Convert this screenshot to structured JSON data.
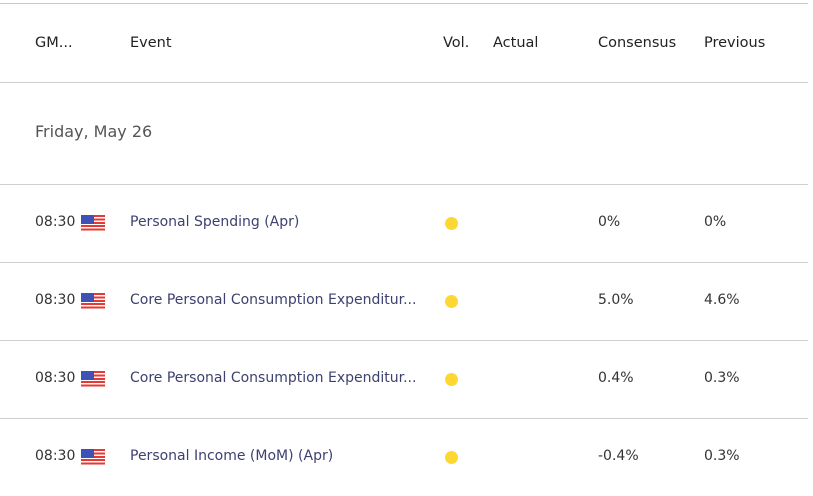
{
  "header": {
    "time": "GM...",
    "event": "Event",
    "vol": "Vol.",
    "actual": "Actual",
    "consensus": "Consensus",
    "previous": "Previous"
  },
  "date_label": "Friday, May 26",
  "volatility_color": "#fdd835",
  "rows": [
    {
      "time": "08:30",
      "country": "US",
      "event": "Personal Spending (Apr)",
      "actual": "",
      "consensus": "0%",
      "previous": "0%"
    },
    {
      "time": "08:30",
      "country": "US",
      "event": "Core Personal Consumption Expenditur...",
      "actual": "",
      "consensus": "5.0%",
      "previous": "4.6%"
    },
    {
      "time": "08:30",
      "country": "US",
      "event": "Core Personal Consumption Expenditur...",
      "actual": "",
      "consensus": "0.4%",
      "previous": "0.3%"
    },
    {
      "time": "08:30",
      "country": "US",
      "event": "Personal Income (MoM) (Apr)",
      "actual": "",
      "consensus": "-0.4%",
      "previous": "0.3%"
    }
  ]
}
